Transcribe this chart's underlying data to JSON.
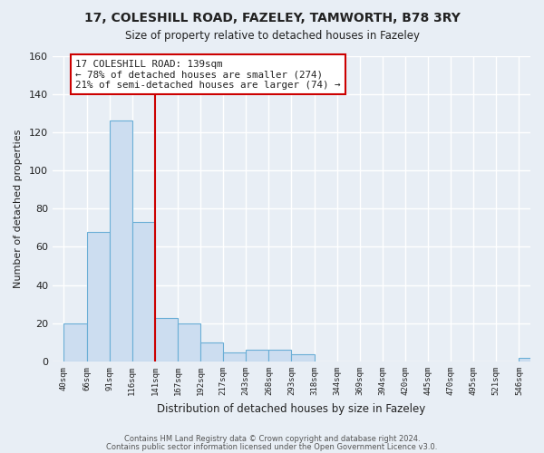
{
  "title": "17, COLESHILL ROAD, FAZELEY, TAMWORTH, B78 3RY",
  "subtitle": "Size of property relative to detached houses in Fazeley",
  "xlabel": "Distribution of detached houses by size in Fazeley",
  "ylabel": "Number of detached properties",
  "bins": [
    "40sqm",
    "66sqm",
    "91sqm",
    "116sqm",
    "141sqm",
    "167sqm",
    "192sqm",
    "217sqm",
    "243sqm",
    "268sqm",
    "293sqm",
    "318sqm",
    "344sqm",
    "369sqm",
    "394sqm",
    "420sqm",
    "445sqm",
    "470sqm",
    "495sqm",
    "521sqm",
    "546sqm"
  ],
  "values": [
    20,
    68,
    126,
    73,
    23,
    20,
    10,
    5,
    6,
    6,
    4,
    0,
    0,
    0,
    0,
    0,
    0,
    0,
    0,
    0,
    2
  ],
  "bar_color": "#ccddf0",
  "bar_edge_color": "#6aaed6",
  "vline_x_index": 4,
  "vline_color": "#cc0000",
  "annotation_text": "17 COLESHILL ROAD: 139sqm\n← 78% of detached houses are smaller (274)\n21% of semi-detached houses are larger (74) →",
  "annotation_box_color": "#ffffff",
  "annotation_box_edge": "#cc0000",
  "ylim": [
    0,
    160
  ],
  "yticks": [
    0,
    20,
    40,
    60,
    80,
    100,
    120,
    140,
    160
  ],
  "bg_color": "#e8eef5",
  "grid_color": "#c8d4e0",
  "footer1": "Contains HM Land Registry data © Crown copyright and database right 2024.",
  "footer2": "Contains public sector information licensed under the Open Government Licence v3.0."
}
